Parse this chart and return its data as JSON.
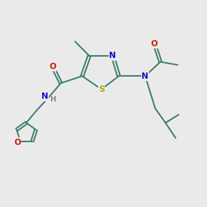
{
  "bg_color": "#eaeaea",
  "bond_color": "#3a7d6e",
  "bond_width": 1.5,
  "atom_colors": {
    "N": "#1010cc",
    "O": "#cc2000",
    "S": "#aaaa00",
    "H": "#888888",
    "C": "#3a7d6e"
  },
  "figsize": [
    3.0,
    3.0
  ],
  "dpi": 100
}
